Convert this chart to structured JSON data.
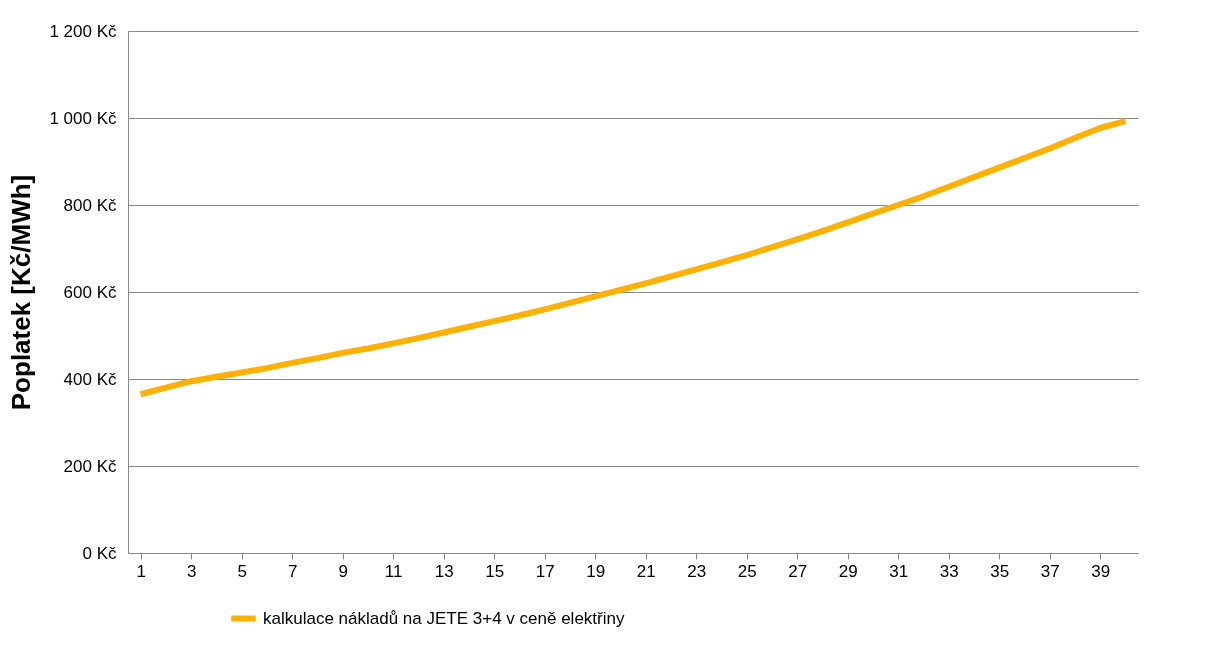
{
  "chart_data": {
    "type": "line",
    "ylabel": "Poplatek [Kč/MWh]",
    "x": [
      1,
      2,
      3,
      4,
      5,
      6,
      7,
      8,
      9,
      10,
      11,
      12,
      13,
      14,
      15,
      16,
      17,
      18,
      19,
      20,
      21,
      22,
      23,
      24,
      25,
      26,
      27,
      28,
      29,
      30,
      31,
      32,
      33,
      34,
      35,
      36,
      37,
      38,
      39,
      40
    ],
    "series": [
      {
        "name": "kalkulace nákladů na JETE 3+4 v ceně elektřiny",
        "color": "#ffb000",
        "values": [
          365,
          380,
          395,
          405,
          415,
          425,
          437,
          448,
          460,
          470,
          482,
          494,
          507,
          520,
          533,
          546,
          560,
          575,
          590,
          605,
          620,
          636,
          652,
          668,
          685,
          703,
          721,
          740,
          760,
          780,
          800,
          820,
          842,
          864,
          886,
          908,
          930,
          954,
          977,
          993
        ]
      }
    ],
    "xlim": [
      0.5,
      40.5
    ],
    "xticks": [
      1,
      3,
      5,
      7,
      9,
      11,
      13,
      15,
      17,
      19,
      21,
      23,
      25,
      27,
      29,
      31,
      33,
      35,
      37,
      39
    ],
    "ylim": [
      0,
      1200
    ],
    "yticks": [
      {
        "value": 0,
        "label": "0 Kč"
      },
      {
        "value": 200,
        "label": "200 Kč"
      },
      {
        "value": 400,
        "label": "400 Kč"
      },
      {
        "value": 600,
        "label": "600 Kč"
      },
      {
        "value": 800,
        "label": "800 Kč"
      },
      {
        "value": 1000,
        "label": "1 000 Kč"
      },
      {
        "value": 1200,
        "label": "1 200 Kč"
      }
    ],
    "grid": "y",
    "legend": "bottom",
    "marker": "none",
    "line_style": "solid"
  }
}
